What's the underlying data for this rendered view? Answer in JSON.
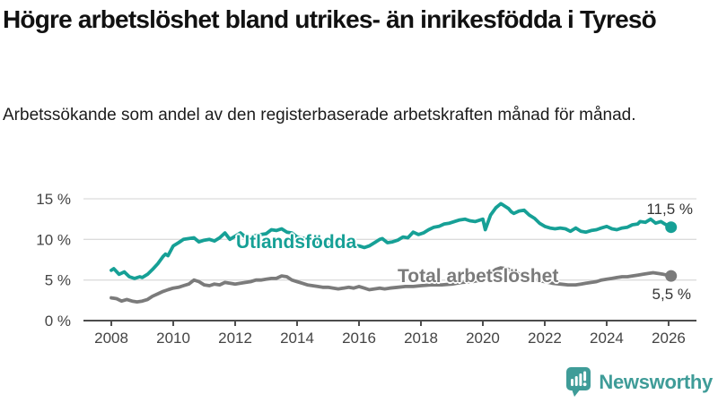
{
  "header": {
    "title": "Högre arbetslöshet bland utrikes- än inrikesfödda i Tyresö",
    "subtitle": "Arbetssökande som andel av den registerbaserade arbetskraften månad för månad."
  },
  "chart_data": {
    "type": "line",
    "unit": "%",
    "grid": true,
    "x_axis": {
      "lim": [
        2007.1,
        2026.9
      ],
      "ticks": [
        {
          "v": 2008,
          "label": "2008"
        },
        {
          "v": 2010,
          "label": "2010"
        },
        {
          "v": 2012,
          "label": "2012"
        },
        {
          "v": 2014,
          "label": "2014"
        },
        {
          "v": 2016,
          "label": "2016"
        },
        {
          "v": 2018,
          "label": "2018"
        },
        {
          "v": 2020,
          "label": "2020"
        },
        {
          "v": 2022,
          "label": "2022"
        },
        {
          "v": 2024,
          "label": "2024"
        },
        {
          "v": 2026,
          "label": "2026"
        }
      ]
    },
    "y_axis": {
      "lim": [
        0,
        15
      ],
      "ticks": [
        {
          "v": 0,
          "label": "0 %"
        },
        {
          "v": 5,
          "label": "5 %"
        },
        {
          "v": 10,
          "label": "10 %"
        },
        {
          "v": 15,
          "label": "15 %"
        }
      ]
    },
    "series": [
      {
        "name": "Utlandsfödda",
        "color": "#16a096",
        "end_value_label": "11,5 %",
        "end_value": 11.5,
        "points": [
          [
            2008.0,
            6.2
          ],
          [
            2008.08,
            6.4
          ],
          [
            2008.25,
            5.7
          ],
          [
            2008.42,
            6.0
          ],
          [
            2008.58,
            5.4
          ],
          [
            2008.75,
            5.2
          ],
          [
            2008.92,
            5.4
          ],
          [
            2009.0,
            5.3
          ],
          [
            2009.17,
            5.7
          ],
          [
            2009.33,
            6.3
          ],
          [
            2009.5,
            7.0
          ],
          [
            2009.67,
            7.9
          ],
          [
            2009.75,
            8.2
          ],
          [
            2009.83,
            8.0
          ],
          [
            2010.0,
            9.2
          ],
          [
            2010.17,
            9.6
          ],
          [
            2010.33,
            10.0
          ],
          [
            2010.5,
            10.1
          ],
          [
            2010.67,
            10.2
          ],
          [
            2010.83,
            9.7
          ],
          [
            2011.0,
            9.9
          ],
          [
            2011.17,
            10.0
          ],
          [
            2011.33,
            9.8
          ],
          [
            2011.5,
            10.2
          ],
          [
            2011.67,
            10.8
          ],
          [
            2011.83,
            10.0
          ],
          [
            2012.0,
            10.4
          ],
          [
            2012.17,
            10.8
          ],
          [
            2012.33,
            10.3
          ],
          [
            2012.5,
            10.3
          ],
          [
            2012.67,
            10.5
          ],
          [
            2012.83,
            10.6
          ],
          [
            2013.0,
            10.7
          ],
          [
            2013.17,
            11.2
          ],
          [
            2013.33,
            11.1
          ],
          [
            2013.5,
            11.3
          ],
          [
            2013.67,
            10.9
          ],
          [
            2013.83,
            10.8
          ],
          [
            2014.0,
            10.3
          ],
          [
            2014.25,
            10.1
          ],
          [
            2014.5,
            9.8
          ],
          [
            2014.75,
            9.6
          ],
          [
            2015.0,
            9.4
          ],
          [
            2015.25,
            9.3
          ],
          [
            2015.5,
            9.2
          ],
          [
            2015.75,
            9.3
          ],
          [
            2016.0,
            9.2
          ],
          [
            2016.17,
            9.0
          ],
          [
            2016.33,
            9.2
          ],
          [
            2016.5,
            9.6
          ],
          [
            2016.67,
            10.0
          ],
          [
            2016.75,
            10.1
          ],
          [
            2016.92,
            9.6
          ],
          [
            2017.08,
            9.7
          ],
          [
            2017.25,
            9.9
          ],
          [
            2017.42,
            10.3
          ],
          [
            2017.58,
            10.2
          ],
          [
            2017.75,
            10.9
          ],
          [
            2017.92,
            10.6
          ],
          [
            2018.08,
            10.8
          ],
          [
            2018.25,
            11.2
          ],
          [
            2018.42,
            11.5
          ],
          [
            2018.58,
            11.6
          ],
          [
            2018.75,
            11.9
          ],
          [
            2018.92,
            12.0
          ],
          [
            2019.08,
            12.2
          ],
          [
            2019.25,
            12.4
          ],
          [
            2019.42,
            12.5
          ],
          [
            2019.58,
            12.3
          ],
          [
            2019.75,
            12.2
          ],
          [
            2019.92,
            12.4
          ],
          [
            2020.0,
            12.5
          ],
          [
            2020.08,
            11.2
          ],
          [
            2020.25,
            13.0
          ],
          [
            2020.42,
            13.9
          ],
          [
            2020.58,
            14.4
          ],
          [
            2020.67,
            14.2
          ],
          [
            2020.83,
            13.8
          ],
          [
            2020.92,
            13.4
          ],
          [
            2021.0,
            13.2
          ],
          [
            2021.17,
            13.5
          ],
          [
            2021.33,
            13.6
          ],
          [
            2021.5,
            13.0
          ],
          [
            2021.67,
            12.6
          ],
          [
            2021.83,
            12.0
          ],
          [
            2022.0,
            11.6
          ],
          [
            2022.17,
            11.4
          ],
          [
            2022.33,
            11.3
          ],
          [
            2022.5,
            11.4
          ],
          [
            2022.67,
            11.3
          ],
          [
            2022.83,
            11.0
          ],
          [
            2023.0,
            11.4
          ],
          [
            2023.17,
            11.0
          ],
          [
            2023.33,
            10.9
          ],
          [
            2023.5,
            11.1
          ],
          [
            2023.67,
            11.2
          ],
          [
            2023.83,
            11.4
          ],
          [
            2024.0,
            11.6
          ],
          [
            2024.17,
            11.3
          ],
          [
            2024.33,
            11.2
          ],
          [
            2024.5,
            11.4
          ],
          [
            2024.67,
            11.5
          ],
          [
            2024.83,
            11.8
          ],
          [
            2025.0,
            11.9
          ],
          [
            2025.08,
            12.2
          ],
          [
            2025.25,
            12.1
          ],
          [
            2025.42,
            12.5
          ],
          [
            2025.58,
            12.0
          ],
          [
            2025.75,
            12.2
          ],
          [
            2025.92,
            11.8
          ],
          [
            2026.08,
            11.5
          ]
        ]
      },
      {
        "name": "Total arbetslöshet",
        "color": "#7b7b7b",
        "end_value_label": "5,5 %",
        "end_value": 5.5,
        "points": [
          [
            2008.0,
            2.8
          ],
          [
            2008.17,
            2.7
          ],
          [
            2008.33,
            2.4
          ],
          [
            2008.5,
            2.6
          ],
          [
            2008.67,
            2.4
          ],
          [
            2008.83,
            2.3
          ],
          [
            2009.0,
            2.4
          ],
          [
            2009.17,
            2.6
          ],
          [
            2009.33,
            3.0
          ],
          [
            2009.5,
            3.3
          ],
          [
            2009.67,
            3.6
          ],
          [
            2009.83,
            3.8
          ],
          [
            2010.0,
            4.0
          ],
          [
            2010.17,
            4.1
          ],
          [
            2010.33,
            4.3
          ],
          [
            2010.5,
            4.5
          ],
          [
            2010.67,
            5.0
          ],
          [
            2010.83,
            4.8
          ],
          [
            2011.0,
            4.4
          ],
          [
            2011.17,
            4.3
          ],
          [
            2011.33,
            4.5
          ],
          [
            2011.5,
            4.4
          ],
          [
            2011.67,
            4.7
          ],
          [
            2011.83,
            4.6
          ],
          [
            2012.0,
            4.5
          ],
          [
            2012.17,
            4.6
          ],
          [
            2012.33,
            4.7
          ],
          [
            2012.5,
            4.8
          ],
          [
            2012.67,
            5.0
          ],
          [
            2012.83,
            5.0
          ],
          [
            2013.0,
            5.1
          ],
          [
            2013.17,
            5.2
          ],
          [
            2013.33,
            5.2
          ],
          [
            2013.5,
            5.5
          ],
          [
            2013.67,
            5.4
          ],
          [
            2013.83,
            5.0
          ],
          [
            2014.0,
            4.8
          ],
          [
            2014.17,
            4.6
          ],
          [
            2014.33,
            4.4
          ],
          [
            2014.5,
            4.3
          ],
          [
            2014.67,
            4.2
          ],
          [
            2014.83,
            4.1
          ],
          [
            2015.0,
            4.1
          ],
          [
            2015.17,
            4.0
          ],
          [
            2015.33,
            3.9
          ],
          [
            2015.5,
            4.0
          ],
          [
            2015.67,
            4.1
          ],
          [
            2015.83,
            4.0
          ],
          [
            2016.0,
            4.2
          ],
          [
            2016.17,
            4.0
          ],
          [
            2016.33,
            3.8
          ],
          [
            2016.5,
            3.9
          ],
          [
            2016.67,
            4.0
          ],
          [
            2016.83,
            3.9
          ],
          [
            2017.0,
            4.0
          ],
          [
            2017.25,
            4.1
          ],
          [
            2017.5,
            4.2
          ],
          [
            2017.75,
            4.2
          ],
          [
            2018.0,
            4.3
          ],
          [
            2018.33,
            4.4
          ],
          [
            2018.67,
            4.4
          ],
          [
            2019.0,
            4.5
          ],
          [
            2019.33,
            4.7
          ],
          [
            2019.67,
            4.8
          ],
          [
            2019.92,
            5.0
          ],
          [
            2020.08,
            5.2
          ],
          [
            2020.25,
            5.8
          ],
          [
            2020.42,
            6.3
          ],
          [
            2020.58,
            6.5
          ],
          [
            2020.75,
            6.4
          ],
          [
            2020.92,
            6.2
          ],
          [
            2021.08,
            5.9
          ],
          [
            2021.25,
            5.6
          ],
          [
            2021.5,
            5.3
          ],
          [
            2021.75,
            5.0
          ],
          [
            2022.0,
            4.8
          ],
          [
            2022.25,
            4.6
          ],
          [
            2022.5,
            4.5
          ],
          [
            2022.75,
            4.4
          ],
          [
            2023.0,
            4.4
          ],
          [
            2023.17,
            4.5
          ],
          [
            2023.33,
            4.6
          ],
          [
            2023.5,
            4.7
          ],
          [
            2023.67,
            4.8
          ],
          [
            2023.83,
            5.0
          ],
          [
            2024.0,
            5.1
          ],
          [
            2024.17,
            5.2
          ],
          [
            2024.33,
            5.3
          ],
          [
            2024.5,
            5.4
          ],
          [
            2024.67,
            5.4
          ],
          [
            2024.83,
            5.5
          ],
          [
            2025.0,
            5.6
          ],
          [
            2025.17,
            5.7
          ],
          [
            2025.33,
            5.8
          ],
          [
            2025.5,
            5.9
          ],
          [
            2025.67,
            5.8
          ],
          [
            2025.83,
            5.7
          ],
          [
            2026.08,
            5.5
          ]
        ]
      }
    ]
  },
  "branding": {
    "name": "Newsworthy",
    "color": "#3f9c98"
  },
  "colors": {
    "accent": "#16a096",
    "gridline": "#dcdcdc",
    "axis": "#4d4d4d",
    "tick_text": "#444444"
  }
}
